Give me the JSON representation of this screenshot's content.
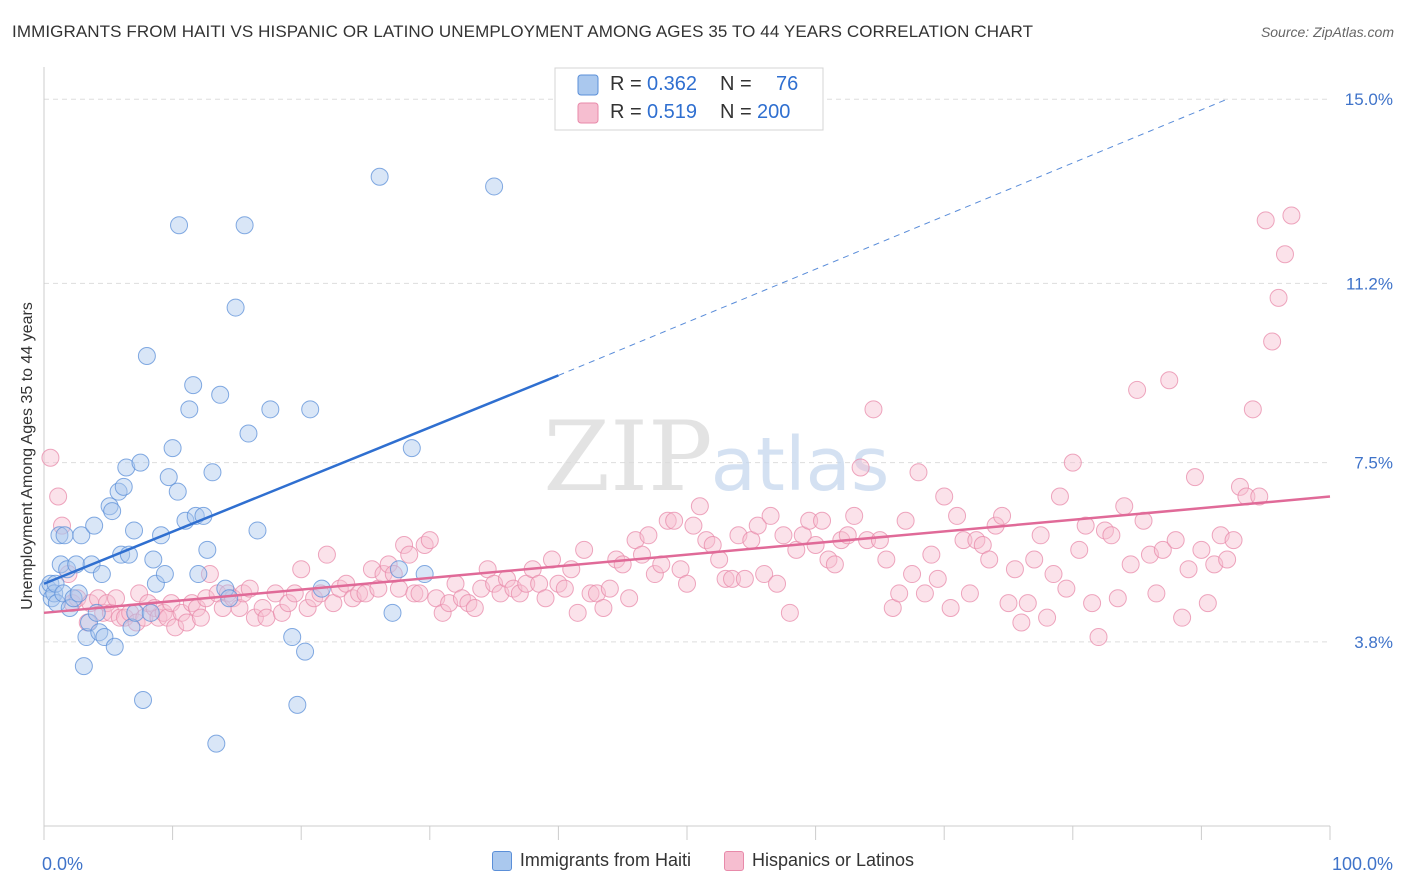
{
  "header": {
    "title": "IMMIGRANTS FROM HAITI VS HISPANIC OR LATINO UNEMPLOYMENT AMONG AGES 35 TO 44 YEARS CORRELATION CHART",
    "source": "Source: ZipAtlas.com"
  },
  "watermark": {
    "zip": "ZIP",
    "atlas": "atlas"
  },
  "stats": [
    {
      "r_label": "R =",
      "r_value": "0.362",
      "n_label": "N =",
      "n_value": "76"
    },
    {
      "r_label": "R =",
      "r_value": "0.519",
      "n_label": "N =",
      "n_value": "200"
    }
  ],
  "colors": {
    "series1_fill": "#aac8ee",
    "series1_stroke": "#5b8fd8",
    "series1_line": "#2f6fd0",
    "series2_fill": "#f6bed0",
    "series2_stroke": "#e88aaa",
    "series2_line": "#e06a98",
    "tick_label": "#3f73c9",
    "grid": "#dddddd"
  },
  "chart_data": {
    "type": "scatter",
    "title": "IMMIGRANTS FROM HAITI VS HISPANIC OR LATINO UNEMPLOYMENT AMONG AGES 35 TO 44 YEARS CORRELATION CHART",
    "xlabel": "",
    "ylabel": "Unemployment Among Ages 35 to 44 years",
    "xlim": [
      0,
      100
    ],
    "ylim": [
      0,
      15.5
    ],
    "x_tick_labels": [
      "0.0%",
      "100.0%"
    ],
    "y_ticks": [
      3.8,
      7.5,
      11.2,
      15.0
    ],
    "y_tick_labels": [
      "3.8%",
      "7.5%",
      "11.2%",
      "15.0%"
    ],
    "grid": true,
    "legend_position": "bottom",
    "series": [
      {
        "name": "Immigrants from Haiti",
        "r": 0.362,
        "n": 76,
        "trend": {
          "x0": 0,
          "y0": 5.0,
          "x1": 40,
          "y1": 9.3,
          "dashed_to_x": 92,
          "dashed_to_y": 15.0
        },
        "points": [
          [
            0.3,
            4.9
          ],
          [
            0.5,
            5.0
          ],
          [
            0.6,
            4.7
          ],
          [
            0.8,
            4.8
          ],
          [
            0.9,
            5.0
          ],
          [
            1.0,
            4.6
          ],
          [
            1.2,
            6.0
          ],
          [
            1.3,
            5.4
          ],
          [
            1.5,
            4.8
          ],
          [
            1.6,
            6.0
          ],
          [
            1.8,
            5.3
          ],
          [
            2.0,
            4.5
          ],
          [
            2.3,
            4.7
          ],
          [
            2.5,
            5.4
          ],
          [
            2.7,
            4.8
          ],
          [
            2.9,
            6.0
          ],
          [
            3.1,
            3.3
          ],
          [
            3.3,
            3.9
          ],
          [
            3.5,
            4.2
          ],
          [
            3.7,
            5.4
          ],
          [
            3.9,
            6.2
          ],
          [
            4.1,
            4.4
          ],
          [
            4.3,
            4.0
          ],
          [
            4.5,
            5.2
          ],
          [
            4.7,
            3.9
          ],
          [
            5.1,
            6.6
          ],
          [
            5.3,
            6.5
          ],
          [
            5.5,
            3.7
          ],
          [
            5.8,
            6.9
          ],
          [
            6.0,
            5.6
          ],
          [
            6.2,
            7.0
          ],
          [
            6.4,
            7.4
          ],
          [
            6.6,
            5.6
          ],
          [
            6.8,
            4.1
          ],
          [
            7.0,
            6.1
          ],
          [
            7.1,
            4.4
          ],
          [
            7.5,
            7.5
          ],
          [
            7.7,
            2.6
          ],
          [
            8.0,
            9.7
          ],
          [
            8.3,
            4.4
          ],
          [
            8.5,
            5.5
          ],
          [
            8.7,
            5.0
          ],
          [
            9.1,
            6.0
          ],
          [
            9.4,
            5.2
          ],
          [
            9.7,
            7.2
          ],
          [
            10.0,
            7.8
          ],
          [
            10.4,
            6.9
          ],
          [
            10.5,
            12.4
          ],
          [
            11.0,
            6.3
          ],
          [
            11.3,
            8.6
          ],
          [
            11.6,
            9.1
          ],
          [
            11.8,
            6.4
          ],
          [
            12.0,
            5.2
          ],
          [
            12.4,
            6.4
          ],
          [
            12.7,
            5.7
          ],
          [
            13.1,
            7.3
          ],
          [
            13.4,
            1.7
          ],
          [
            13.7,
            8.9
          ],
          [
            14.1,
            4.9
          ],
          [
            14.4,
            4.7
          ],
          [
            14.9,
            10.7
          ],
          [
            15.6,
            12.4
          ],
          [
            15.9,
            8.1
          ],
          [
            16.6,
            6.1
          ],
          [
            17.6,
            8.6
          ],
          [
            19.3,
            3.9
          ],
          [
            19.7,
            2.5
          ],
          [
            20.3,
            3.6
          ],
          [
            20.7,
            8.6
          ],
          [
            21.6,
            4.9
          ],
          [
            26.1,
            13.4
          ],
          [
            27.1,
            4.4
          ],
          [
            27.6,
            5.3
          ],
          [
            28.6,
            7.8
          ],
          [
            29.6,
            5.2
          ],
          [
            35.0,
            13.2
          ]
        ]
      },
      {
        "name": "Hispanics or Latinos",
        "r": 0.519,
        "n": 200,
        "trend": {
          "x0": 0,
          "y0": 4.4,
          "x1": 100,
          "y1": 6.8
        },
        "points": [
          [
            0.5,
            7.6
          ],
          [
            1.1,
            6.8
          ],
          [
            1.4,
            6.2
          ],
          [
            1.9,
            5.2
          ],
          [
            2.2,
            4.6
          ],
          [
            2.6,
            4.7
          ],
          [
            3.4,
            4.2
          ],
          [
            3.6,
            4.6
          ],
          [
            4.2,
            4.7
          ],
          [
            4.6,
            4.4
          ],
          [
            4.9,
            4.6
          ],
          [
            5.2,
            4.4
          ],
          [
            5.6,
            4.7
          ],
          [
            5.9,
            4.3
          ],
          [
            6.3,
            4.3
          ],
          [
            6.7,
            4.4
          ],
          [
            7.2,
            4.2
          ],
          [
            7.4,
            4.8
          ],
          [
            7.8,
            4.3
          ],
          [
            8.1,
            4.6
          ],
          [
            8.6,
            4.5
          ],
          [
            8.9,
            4.3
          ],
          [
            9.3,
            4.4
          ],
          [
            9.6,
            4.3
          ],
          [
            9.9,
            4.6
          ],
          [
            10.2,
            4.1
          ],
          [
            10.7,
            4.4
          ],
          [
            11.1,
            4.2
          ],
          [
            11.5,
            4.6
          ],
          [
            11.9,
            4.5
          ],
          [
            12.2,
            4.3
          ],
          [
            12.6,
            4.7
          ],
          [
            12.9,
            5.2
          ],
          [
            13.5,
            4.8
          ],
          [
            13.9,
            4.5
          ],
          [
            14.3,
            4.8
          ],
          [
            14.7,
            4.7
          ],
          [
            15.2,
            4.5
          ],
          [
            15.5,
            4.8
          ],
          [
            16.0,
            4.9
          ],
          [
            16.4,
            4.3
          ],
          [
            17.0,
            4.5
          ],
          [
            17.3,
            4.3
          ],
          [
            18.0,
            4.8
          ],
          [
            18.5,
            4.4
          ],
          [
            19.0,
            4.6
          ],
          [
            19.5,
            4.8
          ],
          [
            20.0,
            5.3
          ],
          [
            20.5,
            4.5
          ],
          [
            21.0,
            4.7
          ],
          [
            21.5,
            4.8
          ],
          [
            22.0,
            5.6
          ],
          [
            22.5,
            4.6
          ],
          [
            23.0,
            4.9
          ],
          [
            23.5,
            5.0
          ],
          [
            24.0,
            4.7
          ],
          [
            24.5,
            4.8
          ],
          [
            25.0,
            4.8
          ],
          [
            25.5,
            5.3
          ],
          [
            26.0,
            4.9
          ],
          [
            26.4,
            5.2
          ],
          [
            26.8,
            5.4
          ],
          [
            27.2,
            5.2
          ],
          [
            27.6,
            4.9
          ],
          [
            28.0,
            5.8
          ],
          [
            28.4,
            5.6
          ],
          [
            28.8,
            4.8
          ],
          [
            29.2,
            4.8
          ],
          [
            29.6,
            5.8
          ],
          [
            30.0,
            5.9
          ],
          [
            30.5,
            4.7
          ],
          [
            31.0,
            4.4
          ],
          [
            31.5,
            4.6
          ],
          [
            32.0,
            5.0
          ],
          [
            32.5,
            4.7
          ],
          [
            33.0,
            4.6
          ],
          [
            33.5,
            4.5
          ],
          [
            34.0,
            4.9
          ],
          [
            34.5,
            5.3
          ],
          [
            35.0,
            5.0
          ],
          [
            35.5,
            4.8
          ],
          [
            36.0,
            5.1
          ],
          [
            36.5,
            4.9
          ],
          [
            37.0,
            4.8
          ],
          [
            37.5,
            5.0
          ],
          [
            38.0,
            5.3
          ],
          [
            38.5,
            5.0
          ],
          [
            39.0,
            4.7
          ],
          [
            39.5,
            5.5
          ],
          [
            40.0,
            5.0
          ],
          [
            40.5,
            4.9
          ],
          [
            41.0,
            5.3
          ],
          [
            41.5,
            4.4
          ],
          [
            42.0,
            5.7
          ],
          [
            42.5,
            4.8
          ],
          [
            43.0,
            4.8
          ],
          [
            43.5,
            4.5
          ],
          [
            44.0,
            4.9
          ],
          [
            44.5,
            5.5
          ],
          [
            45.0,
            5.4
          ],
          [
            45.5,
            4.7
          ],
          [
            46.0,
            5.9
          ],
          [
            46.5,
            5.6
          ],
          [
            47.0,
            6.0
          ],
          [
            47.5,
            5.2
          ],
          [
            48.0,
            5.4
          ],
          [
            48.5,
            6.3
          ],
          [
            49.0,
            6.3
          ],
          [
            49.5,
            5.3
          ],
          [
            50.0,
            5.0
          ],
          [
            50.5,
            6.2
          ],
          [
            51.0,
            6.6
          ],
          [
            51.5,
            5.9
          ],
          [
            52.0,
            5.8
          ],
          [
            52.5,
            5.5
          ],
          [
            53.0,
            5.1
          ],
          [
            53.5,
            5.1
          ],
          [
            54.0,
            6.0
          ],
          [
            54.5,
            5.1
          ],
          [
            55.0,
            5.9
          ],
          [
            55.5,
            6.2
          ],
          [
            56.0,
            5.2
          ],
          [
            56.5,
            6.4
          ],
          [
            57.0,
            5.0
          ],
          [
            57.5,
            6.0
          ],
          [
            58.0,
            4.4
          ],
          [
            58.5,
            5.7
          ],
          [
            59.0,
            6.0
          ],
          [
            59.5,
            6.3
          ],
          [
            60.0,
            5.8
          ],
          [
            60.5,
            6.3
          ],
          [
            61.0,
            5.5
          ],
          [
            61.5,
            5.4
          ],
          [
            62.0,
            5.9
          ],
          [
            62.5,
            6.0
          ],
          [
            63.0,
            6.4
          ],
          [
            63.5,
            7.4
          ],
          [
            64.0,
            5.9
          ],
          [
            64.5,
            8.6
          ],
          [
            65.0,
            5.9
          ],
          [
            65.5,
            5.5
          ],
          [
            66.0,
            4.5
          ],
          [
            66.5,
            4.8
          ],
          [
            67.0,
            6.3
          ],
          [
            67.5,
            5.2
          ],
          [
            68.0,
            7.3
          ],
          [
            68.5,
            4.8
          ],
          [
            69.0,
            5.6
          ],
          [
            69.5,
            5.1
          ],
          [
            70.0,
            6.8
          ],
          [
            70.5,
            4.5
          ],
          [
            71.0,
            6.4
          ],
          [
            71.5,
            5.9
          ],
          [
            72.0,
            4.8
          ],
          [
            72.5,
            5.9
          ],
          [
            73.0,
            5.8
          ],
          [
            73.5,
            5.5
          ],
          [
            74.0,
            6.2
          ],
          [
            74.5,
            6.4
          ],
          [
            75.0,
            4.6
          ],
          [
            75.5,
            5.3
          ],
          [
            76.0,
            4.2
          ],
          [
            76.5,
            4.6
          ],
          [
            77.0,
            5.5
          ],
          [
            77.5,
            6.0
          ],
          [
            78.0,
            4.3
          ],
          [
            78.5,
            5.2
          ],
          [
            79.0,
            6.8
          ],
          [
            79.5,
            4.9
          ],
          [
            80.0,
            7.5
          ],
          [
            80.5,
            5.7
          ],
          [
            81.0,
            6.2
          ],
          [
            81.5,
            4.6
          ],
          [
            82.0,
            3.9
          ],
          [
            82.5,
            6.1
          ],
          [
            83.0,
            6.0
          ],
          [
            83.5,
            4.7
          ],
          [
            84.0,
            6.6
          ],
          [
            84.5,
            5.4
          ],
          [
            85.0,
            9.0
          ],
          [
            85.5,
            6.3
          ],
          [
            86.0,
            5.6
          ],
          [
            86.5,
            4.8
          ],
          [
            87.0,
            5.7
          ],
          [
            87.5,
            9.2
          ],
          [
            88.0,
            5.9
          ],
          [
            88.5,
            4.3
          ],
          [
            89.0,
            5.3
          ],
          [
            89.5,
            7.2
          ],
          [
            90.0,
            5.7
          ],
          [
            90.5,
            4.6
          ],
          [
            91.0,
            5.4
          ],
          [
            91.5,
            6.0
          ],
          [
            92.0,
            5.5
          ],
          [
            92.5,
            5.9
          ],
          [
            93.0,
            7.0
          ],
          [
            93.5,
            6.8
          ],
          [
            94.0,
            8.6
          ],
          [
            94.5,
            6.8
          ],
          [
            95.0,
            12.5
          ],
          [
            95.5,
            10.0
          ],
          [
            96.0,
            10.9
          ],
          [
            96.5,
            11.8
          ],
          [
            97.0,
            12.6
          ]
        ]
      }
    ]
  },
  "legend": {
    "items": [
      "Immigrants from Haiti",
      "Hispanics or Latinos"
    ]
  }
}
